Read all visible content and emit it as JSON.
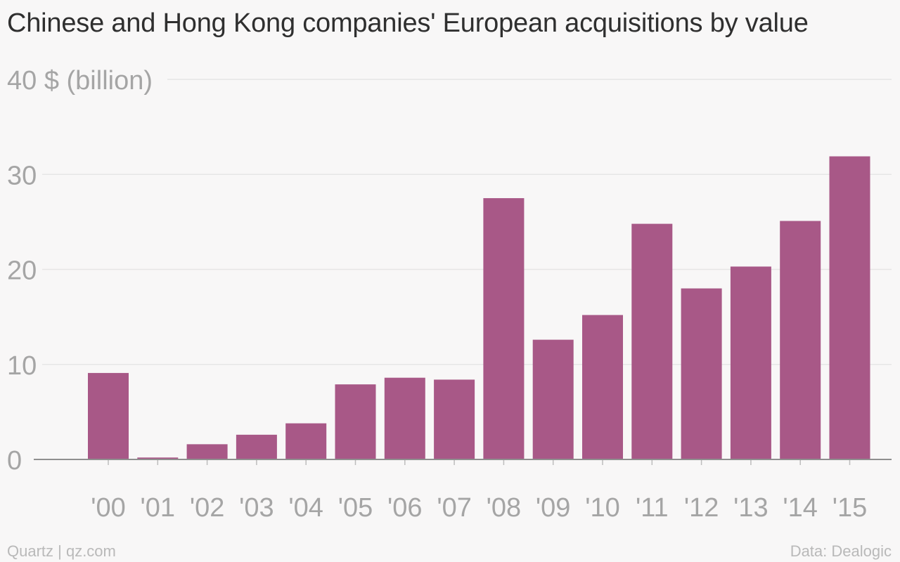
{
  "chart_data": {
    "type": "bar",
    "title": "Chinese and Hong Kong companies' European acquisitions by value",
    "ylabel": "$ (billion)",
    "xlabel": "",
    "ylim": [
      0,
      40
    ],
    "yticks": [
      0,
      10,
      20,
      30,
      40
    ],
    "grid": true,
    "categories": [
      "'00",
      "'01",
      "'02",
      "'03",
      "'04",
      "'05",
      "'06",
      "'07",
      "'08",
      "'09",
      "'10",
      "'11",
      "'12",
      "'13",
      "'14",
      "'15"
    ],
    "values": [
      9.1,
      0.2,
      1.6,
      2.6,
      3.8,
      7.9,
      8.6,
      8.4,
      27.5,
      12.6,
      15.2,
      24.8,
      18.0,
      20.3,
      25.1,
      31.9
    ],
    "bar_color": "#a85887"
  },
  "footer": {
    "source_left": "Quartz | qz.com",
    "source_right": "Data: Dealogic"
  }
}
